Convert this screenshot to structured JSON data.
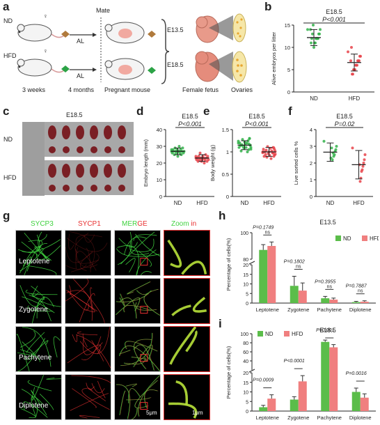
{
  "panel_labels": [
    "a",
    "b",
    "c",
    "d",
    "e",
    "f",
    "g",
    "h",
    "i"
  ],
  "panel_a": {
    "mate": "Mate",
    "nd": "ND",
    "hfd": "HFD",
    "al": "AL",
    "female_symbol": "♀",
    "e135": "E13.5",
    "e185": "E18.5",
    "timeline": [
      "3 weeks",
      "4 months",
      "Pregnant mouse",
      "Female fetus",
      "Ovaries"
    ]
  },
  "panel_c": {
    "title": "E18.5",
    "nd": "ND",
    "hfd": "HFD"
  },
  "chart_data": [
    {
      "id": "b",
      "type": "scatter",
      "title": "E18.5",
      "pvalue": "P<0.001",
      "ylabel": "Alive embryos per litter",
      "ylim": [
        0,
        15
      ],
      "yticks": [
        0,
        5,
        10,
        15
      ],
      "categories": [
        "ND",
        "HFD"
      ],
      "means": [
        12.2,
        6.6
      ],
      "sd": [
        1.8,
        1.9
      ],
      "colors": [
        "#33b24a",
        "#e8434a"
      ],
      "points": [
        [
          14,
          14,
          13,
          13,
          12,
          12,
          12,
          12,
          11,
          11,
          10,
          15,
          13,
          12,
          11,
          14
        ],
        [
          9,
          8,
          8,
          7,
          7,
          7,
          6,
          6,
          6,
          5,
          5,
          5,
          4,
          4,
          10,
          7
        ]
      ]
    },
    {
      "id": "d",
      "type": "scatter",
      "title": "E18.5",
      "pvalue": "P<0.001",
      "ylabel": "Embryo length (mm)",
      "ylim": [
        0,
        40
      ],
      "yticks": [
        0,
        10,
        20,
        30,
        40
      ],
      "categories": [
        "ND",
        "HFD"
      ],
      "means": [
        27,
        23
      ],
      "sd": [
        2,
        2
      ],
      "colors": [
        "#33b24a",
        "#e8434a"
      ],
      "points": [
        [
          28,
          27,
          26,
          29,
          27,
          25,
          28,
          26,
          30,
          27,
          24,
          28,
          26,
          27,
          29,
          25,
          27,
          28,
          26,
          27
        ],
        [
          23,
          22,
          24,
          21,
          23,
          25,
          22,
          20,
          23,
          24,
          22,
          21,
          23,
          26,
          22,
          24,
          21,
          23,
          22,
          24
        ]
      ]
    },
    {
      "id": "e",
      "type": "scatter",
      "title": "E18.5",
      "pvalue": "P<0.001",
      "ylabel": "Body weight (g)",
      "ylim": [
        0,
        1.5
      ],
      "yticks": [
        0,
        0.5,
        1.0,
        1.5
      ],
      "categories": [
        "ND",
        "HFD"
      ],
      "means": [
        1.15,
        1.0
      ],
      "sd": [
        0.1,
        0.1
      ],
      "colors": [
        "#33b24a",
        "#e8434a"
      ],
      "points": [
        [
          1.2,
          1.1,
          1.15,
          1.3,
          1.05,
          1.25,
          1.0,
          1.2,
          1.1,
          1.18,
          1.22,
          1.08,
          1.12,
          1.28,
          1.16,
          1.02,
          1.14,
          1.2,
          1.1,
          1.24,
          1.06,
          1.15,
          1.3,
          1.18
        ],
        [
          1.0,
          0.95,
          1.05,
          0.9,
          1.1,
          0.98,
          1.02,
          0.85,
          1.08,
          0.92,
          1.0,
          0.96,
          1.12,
          0.88,
          1.04,
          0.94,
          1.0,
          0.9,
          1.06,
          0.98,
          1.01,
          0.93,
          1.09,
          0.97
        ]
      ]
    },
    {
      "id": "f",
      "type": "scatter",
      "title": "E18.5",
      "pvalue": "P=0.02",
      "ylabel": "Live sorted cells %",
      "ylim": [
        0,
        4
      ],
      "yticks": [
        0,
        1,
        2,
        3,
        4
      ],
      "categories": [
        "ND",
        "HFD"
      ],
      "means": [
        2.65,
        1.9
      ],
      "sd": [
        0.55,
        0.85
      ],
      "colors": [
        "#33b24a",
        "#e8434a"
      ],
      "points": [
        [
          3.3,
          3.0,
          2.8,
          2.7,
          2.5,
          2.4,
          2.6,
          2.2,
          2.9,
          2.3
        ],
        [
          2.9,
          2.5,
          2.2,
          2.0,
          1.8,
          1.6,
          1.5,
          1.1,
          0.9,
          1.9
        ]
      ]
    },
    {
      "id": "h",
      "type": "bar",
      "title": "E13.5",
      "ylabel": "Percentage of cells(%)",
      "categories": [
        "Leptotene",
        "Zygotene",
        "Pachytene",
        "Diplotene"
      ],
      "series": [
        {
          "name": "ND",
          "color": "#5bbd4a",
          "values": [
            87,
            9,
            2.5,
            0.5
          ],
          "err": [
            4,
            5,
            1,
            0.4
          ]
        },
        {
          "name": "HFD",
          "color": "#f07f7f",
          "values": [
            90,
            6.5,
            1.8,
            0.7
          ],
          "err": [
            3,
            4,
            0.8,
            0.5
          ]
        }
      ],
      "pvalues": [
        "P=0.1749",
        "P=0.1802",
        "P=0.3955",
        "P=0.7887"
      ],
      "sig": [
        "ns",
        "ns",
        "ns",
        "ns"
      ],
      "ytick_labels": [
        "0",
        "5",
        "10",
        "15",
        "20",
        "80",
        "100"
      ]
    },
    {
      "id": "i",
      "type": "bar",
      "title": "E18.5",
      "ylabel": "Percentage of cells(%)",
      "categories": [
        "Leptotene",
        "Zygotene",
        "Pachytene",
        "Diplotene"
      ],
      "series": [
        {
          "name": "ND",
          "color": "#5bbd4a",
          "values": [
            2,
            6,
            82,
            10
          ],
          "err": [
            1,
            1.5,
            4,
            2
          ]
        },
        {
          "name": "HFD",
          "color": "#f07f7f",
          "values": [
            6.5,
            15.5,
            70,
            7
          ],
          "err": [
            2,
            3,
            6,
            2
          ]
        }
      ],
      "pvalues": [
        "P=0.0009",
        "P<0.0001",
        "P=0.001",
        "P=0.0016"
      ],
      "ytick_labels": [
        "0",
        "5",
        "10",
        "15",
        "20",
        "40",
        "60",
        "80",
        "100"
      ]
    }
  ],
  "panel_g": {
    "columns": [
      "SYCP3",
      "SYCP1",
      "MERGE",
      "Zoom in"
    ],
    "merge_parts": [
      "MER",
      "GE"
    ],
    "zoom_parts": [
      "Zoom ",
      "in"
    ],
    "rows": [
      "Leptotene",
      "Zygotene",
      "Pachytene",
      "Diplotene"
    ],
    "scale_main": "5μm",
    "scale_zoom": "1μm",
    "colors": {
      "sycp3": "#3fd23f",
      "sycp1": "#e83030"
    }
  }
}
